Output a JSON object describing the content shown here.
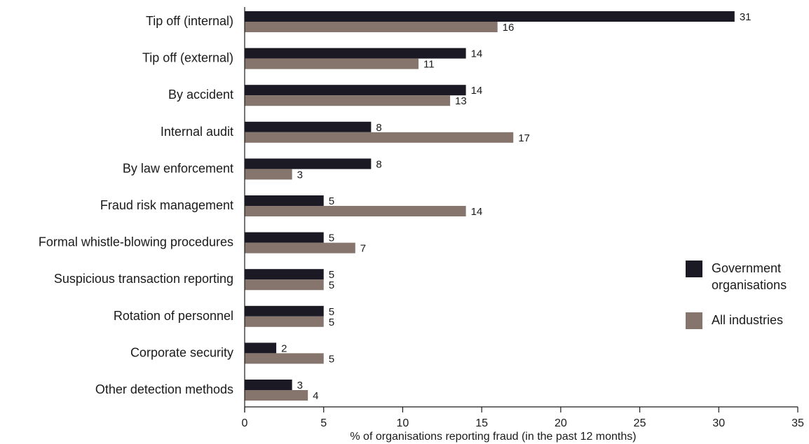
{
  "chart_data": {
    "type": "bar",
    "orientation": "horizontal",
    "categories": [
      "Tip off (internal)",
      "Tip off (external)",
      "By accident",
      "Internal audit",
      "By law enforcement",
      "Fraud risk management",
      "Formal whistle-blowing procedures",
      "Suspicious transaction reporting",
      "Rotation of personnel",
      "Corporate security",
      "Other detection methods"
    ],
    "series": [
      {
        "name": "Government organisations",
        "color": "#1b1a24",
        "values": [
          31,
          14,
          14,
          8,
          8,
          5,
          5,
          5,
          5,
          2,
          3
        ]
      },
      {
        "name": "All industries",
        "color": "#85756c",
        "values": [
          16,
          11,
          13,
          17,
          3,
          14,
          7,
          5,
          5,
          5,
          4
        ]
      }
    ],
    "xlabel": "% of organisations reporting fraud (in the past 12 months)",
    "xlim": [
      0,
      35
    ],
    "xticks": [
      0,
      5,
      10,
      15,
      20,
      25,
      30,
      35
    ],
    "grid": false,
    "legend_position": "right",
    "legend": [
      {
        "lines": [
          "Government",
          "organisations"
        ],
        "color": "#1b1a24"
      },
      {
        "lines": [
          "All industries"
        ],
        "color": "#85756c"
      }
    ]
  }
}
